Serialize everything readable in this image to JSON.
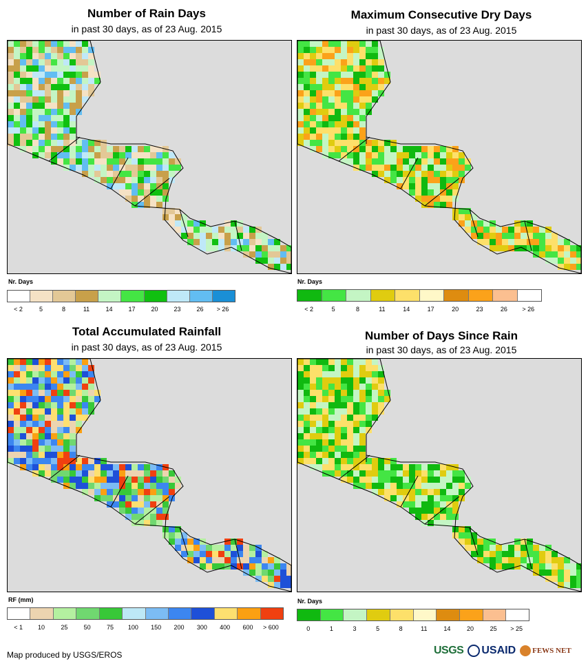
{
  "panels": [
    {
      "title": "Number of Rain Days",
      "subtitle": "in past 30 days, as of 23 Aug. 2015",
      "legend_title": "Nr. Days",
      "legend_colors": [
        "#ffffff",
        "#f5e2c5",
        "#e3c896",
        "#c8a04a",
        "#c4f5c4",
        "#44e544",
        "#10c010",
        "#bfe8f8",
        "#62bdf2",
        "#1a8fd6"
      ],
      "legend_labels": [
        "< 2",
        "5",
        "8",
        "11",
        "14",
        "17",
        "20",
        "23",
        "26",
        "> 26"
      ],
      "palette": [
        "#c8a04a",
        "#e3c896",
        "#f5e2c5",
        "#c4f5c4",
        "#44e544",
        "#10c010",
        "#bfe8f8",
        "#62bdf2"
      ]
    },
    {
      "title": "Maximum Consecutive Dry Days",
      "subtitle": "in past 30 days, as of 23 Aug. 2015",
      "legend_title": "Nr. Days",
      "legend_colors": [
        "#10b910",
        "#44e544",
        "#c4f5c4",
        "#e0cc10",
        "#fde06a",
        "#fff8c8",
        "#de8c10",
        "#fba21a",
        "#fbbf90",
        "#ffffff"
      ],
      "legend_labels": [
        "< 2",
        "5",
        "8",
        "11",
        "14",
        "17",
        "20",
        "23",
        "26",
        "> 26"
      ],
      "palette": [
        "#44e544",
        "#c4f5c4",
        "#10b910",
        "#e0cc10",
        "#fde06a",
        "#fba21a"
      ]
    },
    {
      "title": "Total Accumulated Rainfall",
      "subtitle": "in past 30 days, as of 23 Aug. 2015",
      "legend_title": "RF (mm)",
      "legend_colors": [
        "#ffffff",
        "#ecd4b0",
        "#b4f0a0",
        "#70d870",
        "#38c838",
        "#bde8f6",
        "#7cbcf4",
        "#3c86f0",
        "#1e50d8",
        "#fde070",
        "#fba012",
        "#f04010"
      ],
      "legend_labels": [
        "< 1",
        "10",
        "25",
        "50",
        "75",
        "100",
        "150",
        "200",
        "300",
        "400",
        "600",
        "> 600"
      ],
      "palette": [
        "#1e50d8",
        "#3c86f0",
        "#7cbcf4",
        "#70d870",
        "#38c838",
        "#b4f0a0",
        "#ecd4b0",
        "#fde070",
        "#fba012",
        "#f04010"
      ]
    },
    {
      "title": "Number of Days Since Rain",
      "subtitle": "in past 30 days, as of 23 Aug. 2015",
      "legend_title": "Nr. Days",
      "legend_colors": [
        "#10b910",
        "#44e544",
        "#c4f5c4",
        "#e0cc10",
        "#fde06a",
        "#fff8c8",
        "#de8c10",
        "#fba21a",
        "#fbbf90",
        "#ffffff"
      ],
      "legend_labels": [
        "0",
        "1",
        "3",
        "5",
        "8",
        "11",
        "14",
        "20",
        "25",
        "> 25"
      ],
      "palette": [
        "#10b910",
        "#44e544",
        "#c4f5c4",
        "#e0cc10",
        "#fde06a"
      ]
    }
  ],
  "footer": "Map produced by USGS/EROS",
  "logos": {
    "usgs": "USGS",
    "usaid": "USAID",
    "fews": "FEWS NET"
  },
  "map_background": "#dcdcdc"
}
